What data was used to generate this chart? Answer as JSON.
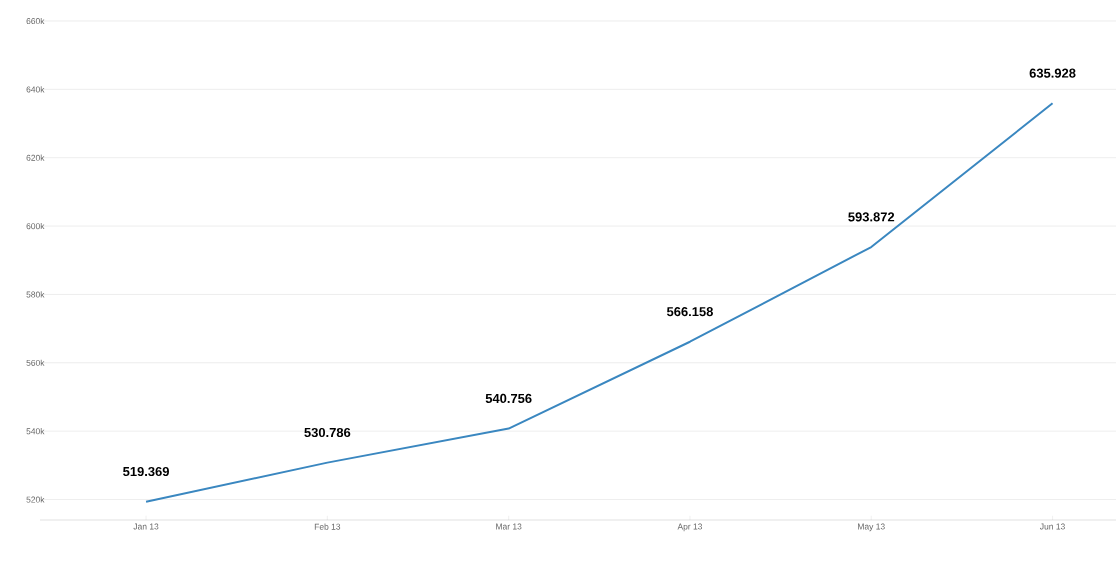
{
  "chart_data": {
    "type": "line",
    "categories": [
      "Jan 13",
      "Feb 13",
      "Mar 13",
      "Apr 13",
      "May 13",
      "Jun 13"
    ],
    "series": [
      {
        "color": "#3a87c0",
        "values": [
          519369,
          530786,
          540756,
          566158,
          593872,
          635928
        ],
        "value_labels": [
          "519.369",
          "530.786",
          "540.756",
          "566.158",
          "593.872",
          "635.928"
        ]
      }
    ],
    "ylim": [
      514000,
      660000
    ],
    "yticks": [
      {
        "value": 520000,
        "label": "520k"
      },
      {
        "value": 540000,
        "label": "540k"
      },
      {
        "value": 560000,
        "label": "560k"
      },
      {
        "value": 580000,
        "label": "580k"
      },
      {
        "value": 600000,
        "label": "600k"
      },
      {
        "value": 620000,
        "label": "620k"
      },
      {
        "value": 640000,
        "label": "640k"
      },
      {
        "value": 660000,
        "label": "660k"
      }
    ],
    "grid": "y",
    "marker": "none",
    "line_style": "solid"
  }
}
